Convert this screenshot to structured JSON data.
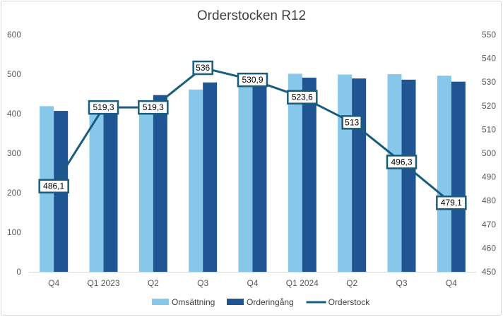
{
  "chart_data": {
    "type": "bar",
    "title": "Orderstocken R12",
    "categories": [
      "Q4",
      "Q1 2023",
      "Q2",
      "Q3",
      "Q4",
      "Q1 2024",
      "Q2",
      "Q3",
      "Q4"
    ],
    "series": [
      {
        "name": "Omsättning",
        "type": "bar",
        "axis": "left",
        "color": "#87c8ea",
        "values": [
          419,
          429,
          429,
          461,
          476,
          501,
          499,
          500,
          496
        ]
      },
      {
        "name": "Orderingång",
        "type": "bar",
        "axis": "left",
        "color": "#1f5592",
        "values": [
          407,
          416,
          447,
          479,
          495,
          491,
          489,
          486,
          481
        ]
      },
      {
        "name": "Orderstock",
        "type": "line",
        "axis": "right",
        "color": "#1a5c7e",
        "values": [
          486.1,
          519.3,
          519.3,
          536,
          530.9,
          523.6,
          513,
          496.3,
          479.1
        ],
        "labels": [
          "486,1",
          "519,3",
          "519,3",
          "536",
          "530,9",
          "523,6",
          "513",
          "496,3",
          "479,1"
        ]
      }
    ],
    "ylim_left": [
      0,
      600
    ],
    "yticks_left": [
      "0",
      "100",
      "200",
      "300",
      "400",
      "500",
      "600"
    ],
    "ylim_right": [
      450,
      550
    ],
    "yticks_right": [
      "450",
      "460",
      "470",
      "480",
      "490",
      "500",
      "510",
      "520",
      "530",
      "540",
      "550"
    ],
    "grid": false,
    "legend": "bottom"
  }
}
